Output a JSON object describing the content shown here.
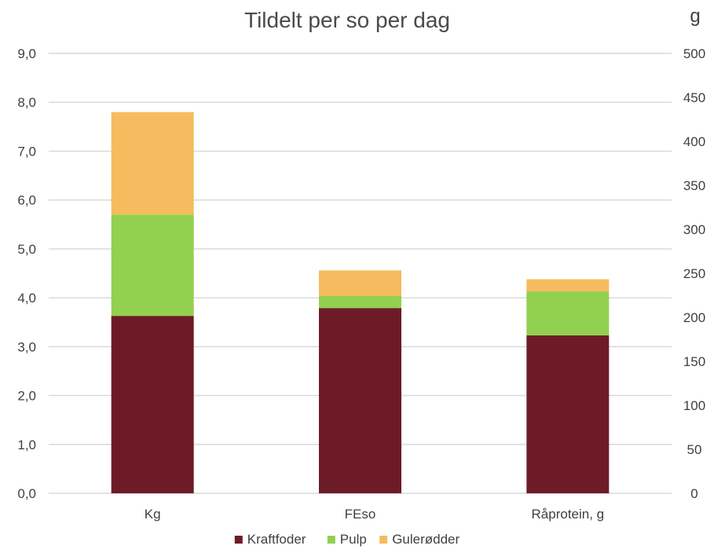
{
  "chart_data": {
    "type": "bar",
    "stacked": true,
    "title": "Tildelt per so per dag",
    "categories": [
      "Kg",
      "FEso",
      "Råprotein, g"
    ],
    "series": [
      {
        "name": "Kraftfoder",
        "values": [
          3.63,
          3.79,
          3.23
        ],
        "color": "#6d1c27"
      },
      {
        "name": "Pulp",
        "values": [
          2.07,
          0.25,
          0.9
        ],
        "color": "#92d050"
      },
      {
        "name": "Gulerødder",
        "values": [
          2.1,
          0.52,
          0.25
        ],
        "color": "#f6bb5e"
      }
    ],
    "ylim": [
      0,
      9
    ],
    "yticks": [
      "0,0",
      "1,0",
      "2,0",
      "3,0",
      "4,0",
      "5,0",
      "6,0",
      "7,0",
      "8,0",
      "9,0"
    ],
    "y2label": "g",
    "y2lim": [
      0,
      500
    ],
    "y2ticks": [
      "0",
      "50",
      "100",
      "150",
      "200",
      "250",
      "300",
      "350",
      "400",
      "450",
      "500"
    ],
    "grid": true,
    "legend_position": "bottom"
  }
}
